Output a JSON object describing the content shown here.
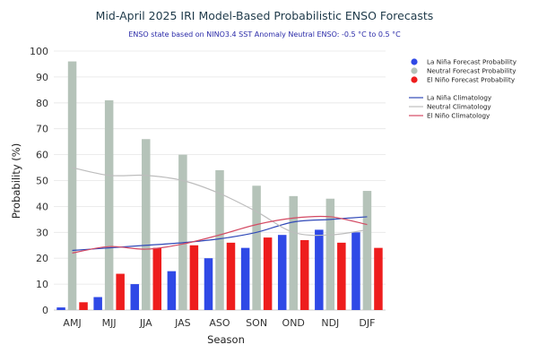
{
  "chart_data": {
    "type": "bar",
    "title": "Mid-April 2025 IRI Model-Based Probabilistic ENSO Forecasts",
    "subtitle": "ENSO state based on NINO3.4 SST Anomaly Neutral ENSO: -0.5 °C to 0.5 °C",
    "xlabel": "Season",
    "ylabel": "Probability (%)",
    "ylim": [
      0,
      100
    ],
    "yticks": [
      0,
      10,
      20,
      30,
      40,
      50,
      60,
      70,
      80,
      90,
      100
    ],
    "grid": true,
    "legend_position": "top-right",
    "categories": [
      "AMJ",
      "MJJ",
      "JJA",
      "JAS",
      "ASO",
      "SON",
      "OND",
      "NDJ",
      "DJF"
    ],
    "series": [
      {
        "name": "La Niña Forecast Probability",
        "color": "#2f49e6",
        "values": [
          1,
          5,
          10,
          15,
          20,
          24,
          29,
          31,
          30
        ]
      },
      {
        "name": "Neutral Forecast Probability",
        "color": "#b5c3b9",
        "values": [
          96,
          81,
          66,
          60,
          54,
          48,
          44,
          43,
          46
        ]
      },
      {
        "name": "El Niño Forecast Probability",
        "color": "#ee1d1d",
        "values": [
          3,
          14,
          24,
          25,
          26,
          28,
          27,
          26,
          24
        ]
      }
    ],
    "climatology": [
      {
        "name": "La Niña Climatology",
        "color": "#3049b8",
        "values": [
          23,
          24,
          25,
          26,
          27.5,
          30,
          34,
          35,
          36
        ]
      },
      {
        "name": "Neutral Climatology",
        "color": "#bdbdbd",
        "values": [
          55,
          52,
          52,
          50,
          45,
          38,
          30,
          29,
          31
        ]
      },
      {
        "name": "El Niño Climatology",
        "color": "#d44a63",
        "values": [
          22,
          24.5,
          23.5,
          25.5,
          29,
          33,
          35.5,
          36,
          33
        ]
      }
    ]
  }
}
